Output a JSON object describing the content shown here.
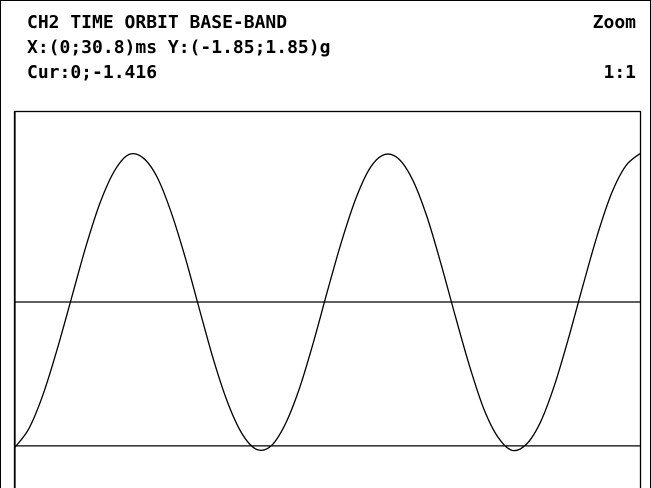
{
  "header": {
    "title": "CH2 TIME ORBIT BASE-BAND",
    "mode": "Zoom",
    "range": "X:(0;30.8)ms Y:(-1.85;1.85)g",
    "cursor": "Cur:0;-1.416",
    "ratio": "1:1"
  },
  "chart_data": {
    "type": "line",
    "x": [
      0,
      0.7,
      1.4,
      2.1,
      2.8,
      3.5,
      4.2,
      4.9,
      5.6,
      6.3,
      7,
      7.7,
      8.4,
      9.1,
      9.8,
      10.5,
      11.2,
      11.9,
      12.6,
      13.3,
      14,
      14.7,
      15.4,
      16.1,
      16.8,
      17.5,
      18.2,
      18.9,
      19.6,
      20.3,
      21,
      21.7,
      22.4,
      23.1,
      23.8,
      24.5,
      25.2,
      25.9,
      26.6,
      27.3,
      28,
      28.7,
      29.4,
      30.1,
      30.8
    ],
    "series": [
      {
        "color": "#000000",
        "values": [
          -1.43,
          -1.24,
          -0.9,
          -0.45,
          0.05,
          0.55,
          0.98,
          1.29,
          1.45,
          1.42,
          1.23,
          0.88,
          0.43,
          -0.08,
          -0.58,
          -1.0,
          -1.3,
          -1.45,
          -1.42,
          -1.21,
          -0.86,
          -0.4,
          0.11,
          0.6,
          1.02,
          1.32,
          1.45,
          1.41,
          1.2,
          0.84,
          0.37,
          -0.14,
          -0.63,
          -1.05,
          -1.33,
          -1.46,
          -1.4,
          -1.18,
          -0.81,
          -0.34,
          0.17,
          0.66,
          1.07,
          1.34,
          1.46
        ]
      }
    ],
    "xlim": [
      0,
      30.8
    ],
    "ylim": [
      -1.85,
      1.85
    ],
    "cursor": [
      0,
      -1.416
    ]
  }
}
